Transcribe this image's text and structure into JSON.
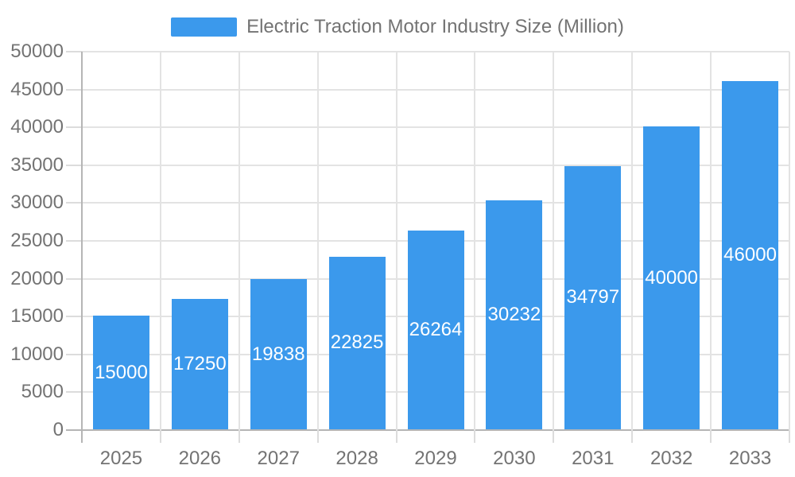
{
  "legend": {
    "swatch_color": "#3b99ec"
  },
  "chart_data": {
    "type": "bar",
    "title": "Electric Traction Motor Industry Size (Million)",
    "categories": [
      "2025",
      "2026",
      "2027",
      "2028",
      "2029",
      "2030",
      "2031",
      "2032",
      "2033"
    ],
    "values": [
      15000,
      17250,
      19838,
      22825,
      26264,
      30232,
      34797,
      40000,
      46000
    ],
    "bar_labels": [
      "15000",
      "17250",
      "19838",
      "22825",
      "26264",
      "30232",
      "34797",
      "40000",
      "46000"
    ],
    "xlabel": "",
    "ylabel": "",
    "ylim": [
      0,
      50000
    ],
    "yticks": [
      0,
      5000,
      10000,
      15000,
      20000,
      25000,
      30000,
      35000,
      40000,
      45000,
      50000
    ],
    "grid": true,
    "legend_position": "top",
    "colors": {
      "bar": "#3b99ec",
      "bar_label": "#ffffff",
      "axis_text": "#737373",
      "gridline": "#e3e3e3",
      "zero_line": "#b5b5b5",
      "tick_mark": "#dcdcdc"
    }
  }
}
